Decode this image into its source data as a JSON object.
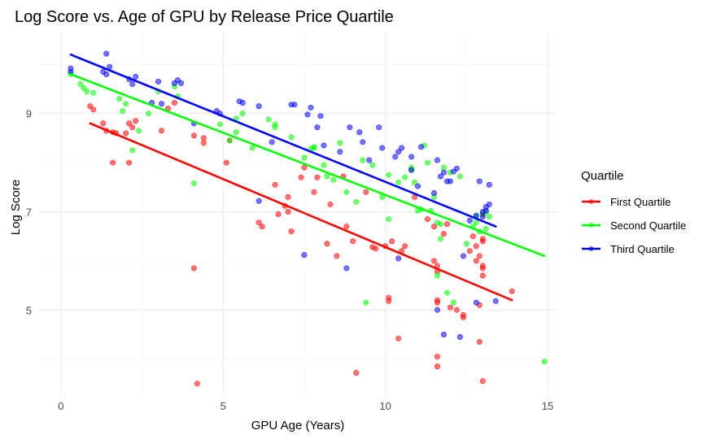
{
  "chart_data": {
    "type": "scatter",
    "title": "Log Score vs. Age of GPU by Release Price Quartile",
    "xlabel": "GPU Age (Years)",
    "ylabel": "Log Score",
    "xlim": [
      -0.7,
      15.3
    ],
    "ylim": [
      3.25,
      10.65
    ],
    "x_ticks": [
      0,
      5,
      10,
      15
    ],
    "y_ticks": [
      5,
      7,
      9
    ],
    "grid": true,
    "legend": {
      "title": "Quartile",
      "position": "right"
    },
    "series": [
      {
        "name": "First Quartile",
        "color": "#ff0000",
        "trend": {
          "x": [
            0.9,
            13.9
          ],
          "y": [
            8.8,
            5.2
          ]
        },
        "points": [
          [
            0.9,
            9.15
          ],
          [
            1,
            9.08
          ],
          [
            1.3,
            8.8
          ],
          [
            1.4,
            8.65
          ],
          [
            1.6,
            8.62
          ],
          [
            1.6,
            8.0
          ],
          [
            1.7,
            8.6
          ],
          [
            2,
            8.6
          ],
          [
            2.1,
            8.8
          ],
          [
            2.3,
            8.85
          ],
          [
            2.2,
            8.72
          ],
          [
            3.1,
            8.65
          ],
          [
            3.3,
            9.1
          ],
          [
            3.5,
            9.22
          ],
          [
            2.1,
            8.0
          ],
          [
            4.1,
            8.55
          ],
          [
            4.4,
            8.5
          ],
          [
            4.4,
            8.4
          ],
          [
            4.1,
            5.85
          ],
          [
            4.2,
            3.5
          ],
          [
            5.1,
            8.0
          ],
          [
            5.2,
            8.45
          ],
          [
            6.1,
            6.78
          ],
          [
            6.2,
            6.7
          ],
          [
            6.6,
            7.55
          ],
          [
            6.7,
            6.95
          ],
          [
            6.9,
            7.12
          ],
          [
            7,
            7.0
          ],
          [
            7,
            7.3
          ],
          [
            7.1,
            6.6
          ],
          [
            7.4,
            7.7
          ],
          [
            7.5,
            7.9
          ],
          [
            7.8,
            7.4
          ],
          [
            7.9,
            7.7
          ],
          [
            8.2,
            6.35
          ],
          [
            8.3,
            7.15
          ],
          [
            8.5,
            6.1
          ],
          [
            8.7,
            7.72
          ],
          [
            8.8,
            6.7
          ],
          [
            9,
            6.4
          ],
          [
            9.4,
            7.4
          ],
          [
            9.6,
            6.28
          ],
          [
            9.7,
            6.25
          ],
          [
            10,
            6.3
          ],
          [
            10.1,
            5.25
          ],
          [
            10.1,
            5.18
          ],
          [
            10.2,
            6.4
          ],
          [
            10.5,
            6.2
          ],
          [
            10.6,
            6.3
          ],
          [
            10.9,
            7.3
          ],
          [
            11.3,
            6.85
          ],
          [
            11.5,
            6.7
          ],
          [
            11.5,
            6.0
          ],
          [
            11.6,
            5.9
          ],
          [
            11.6,
            5.78
          ],
          [
            11.6,
            5.2
          ],
          [
            11.6,
            5.15
          ],
          [
            11.6,
            4.05
          ],
          [
            11.6,
            3.85
          ],
          [
            11.8,
            6.55
          ],
          [
            11.9,
            6.75
          ],
          [
            12,
            5.05
          ],
          [
            12.2,
            5.0
          ],
          [
            12.4,
            4.85
          ],
          [
            12.4,
            4.9
          ],
          [
            12.6,
            6.2
          ],
          [
            12.7,
            6.5
          ],
          [
            12.8,
            6.3
          ],
          [
            12.8,
            6.0
          ],
          [
            12.9,
            6.1
          ],
          [
            12.9,
            4.35
          ],
          [
            12.9,
            5.1
          ],
          [
            13,
            6.95
          ],
          [
            13,
            6.45
          ],
          [
            13,
            6.4
          ],
          [
            13,
            5.85
          ],
          [
            13,
            5.7
          ],
          [
            13,
            5.9
          ],
          [
            13,
            3.55
          ],
          [
            13.9,
            5.38
          ],
          [
            9.1,
            3.72
          ],
          [
            10.4,
            4.42
          ]
        ]
      },
      {
        "name": "Second Quartile",
        "color": "#00ff00",
        "trend": {
          "x": [
            0.3,
            14.9
          ],
          "y": [
            9.8,
            6.1
          ]
        },
        "points": [
          [
            0.3,
            9.8
          ],
          [
            0.6,
            9.6
          ],
          [
            0.7,
            9.52
          ],
          [
            0.8,
            9.45
          ],
          [
            1,
            9.42
          ],
          [
            1.8,
            9.3
          ],
          [
            1.9,
            9.05
          ],
          [
            2,
            9.2
          ],
          [
            2.2,
            8.25
          ],
          [
            2.4,
            8.65
          ],
          [
            2.7,
            9.0
          ],
          [
            3,
            9.45
          ],
          [
            3.5,
            9.55
          ],
          [
            3.6,
            9.35
          ],
          [
            4.1,
            7.58
          ],
          [
            4.9,
            8.78
          ],
          [
            5.2,
            8.45
          ],
          [
            5.4,
            8.62
          ],
          [
            5.4,
            8.9
          ],
          [
            5.6,
            9.0
          ],
          [
            5.9,
            8.3
          ],
          [
            6.4,
            8.88
          ],
          [
            6.6,
            8.72
          ],
          [
            6.6,
            8.78
          ],
          [
            7.1,
            8.52
          ],
          [
            7.5,
            8.1
          ],
          [
            7.7,
            8.28
          ],
          [
            7.8,
            8.3
          ],
          [
            7.8,
            8.32
          ],
          [
            8.1,
            7.95
          ],
          [
            8.2,
            7.72
          ],
          [
            8.4,
            7.65
          ],
          [
            8.6,
            8.4
          ],
          [
            8.8,
            7.4
          ],
          [
            9.1,
            7.2
          ],
          [
            9.3,
            8.05
          ],
          [
            9.6,
            7.95
          ],
          [
            9.9,
            7.3
          ],
          [
            10.1,
            7.75
          ],
          [
            10.1,
            6.85
          ],
          [
            10.4,
            7.6
          ],
          [
            10.6,
            7.7
          ],
          [
            10.8,
            7.85
          ],
          [
            10.8,
            7.9
          ],
          [
            10.9,
            7.6
          ],
          [
            11,
            7.02
          ],
          [
            11.1,
            7.05
          ],
          [
            11.2,
            8.35
          ],
          [
            11.3,
            8.0
          ],
          [
            11.4,
            7.02
          ],
          [
            11.5,
            7.3
          ],
          [
            11.6,
            6.78
          ],
          [
            11.7,
            6.75
          ],
          [
            11.7,
            6.45
          ],
          [
            11.8,
            7.9
          ],
          [
            11.9,
            5.35
          ],
          [
            12,
            7.8
          ],
          [
            12.3,
            7.72
          ],
          [
            12.5,
            6.35
          ],
          [
            12.7,
            6.7
          ],
          [
            12.8,
            6.78
          ],
          [
            12.8,
            6.92
          ],
          [
            12.9,
            6.6
          ],
          [
            13,
            6.95
          ],
          [
            13.1,
            7.0
          ],
          [
            13.1,
            6.65
          ],
          [
            13.2,
            6.9
          ],
          [
            9.4,
            5.15
          ],
          [
            11.6,
            5.7
          ],
          [
            12.1,
            5.15
          ],
          [
            14.9,
            3.95
          ]
        ]
      },
      {
        "name": "Third Quartile",
        "color": "#0000ff",
        "trend": {
          "x": [
            0.3,
            13.4
          ],
          "y": [
            10.2,
            6.7
          ]
        },
        "points": [
          [
            0.3,
            9.92
          ],
          [
            0.3,
            9.85
          ],
          [
            1.3,
            9.85
          ],
          [
            1.4,
            10.22
          ],
          [
            1.4,
            9.8
          ],
          [
            1.5,
            9.95
          ],
          [
            2.1,
            9.7
          ],
          [
            2.2,
            9.6
          ],
          [
            2.3,
            9.75
          ],
          [
            2.8,
            9.22
          ],
          [
            3,
            9.65
          ],
          [
            3.1,
            9.2
          ],
          [
            3.5,
            9.62
          ],
          [
            3.6,
            9.68
          ],
          [
            3.7,
            9.62
          ],
          [
            4.1,
            8.8
          ],
          [
            4.8,
            9.05
          ],
          [
            4.9,
            9.0
          ],
          [
            5.5,
            9.25
          ],
          [
            5.6,
            9.22
          ],
          [
            6.1,
            9.15
          ],
          [
            6.1,
            7.22
          ],
          [
            6.5,
            8.42
          ],
          [
            7.1,
            9.18
          ],
          [
            7.2,
            9.18
          ],
          [
            7.6,
            8.98
          ],
          [
            7.7,
            9.12
          ],
          [
            7.9,
            8.72
          ],
          [
            8,
            8.95
          ],
          [
            8.1,
            8.35
          ],
          [
            8.6,
            8.22
          ],
          [
            8.9,
            8.72
          ],
          [
            9.2,
            8.62
          ],
          [
            9.3,
            8.42
          ],
          [
            9.5,
            8.05
          ],
          [
            9.8,
            8.72
          ],
          [
            9.9,
            8.3
          ],
          [
            10.3,
            8.12
          ],
          [
            10.4,
            8.22
          ],
          [
            10.5,
            8.3
          ],
          [
            10.8,
            8.12
          ],
          [
            10.8,
            7.85
          ],
          [
            11,
            7.52
          ],
          [
            11.1,
            8.32
          ],
          [
            11.5,
            7.38
          ],
          [
            11.6,
            8.05
          ],
          [
            11.7,
            7.72
          ],
          [
            11.8,
            7.8
          ],
          [
            11.9,
            7.62
          ],
          [
            12,
            7.62
          ],
          [
            12.1,
            7.82
          ],
          [
            12.2,
            7.88
          ],
          [
            12.4,
            6.1
          ],
          [
            12.6,
            6.82
          ],
          [
            12.8,
            6.92
          ],
          [
            12.9,
            7.62
          ],
          [
            13,
            7.0
          ],
          [
            13,
            6.9
          ],
          [
            13.1,
            7.02
          ],
          [
            13.1,
            7.1
          ],
          [
            13.2,
            7.15
          ],
          [
            13.2,
            7.55
          ],
          [
            7.5,
            6.12
          ],
          [
            8.8,
            5.85
          ],
          [
            10.4,
            6.05
          ],
          [
            11.6,
            5.0
          ],
          [
            11.8,
            4.5
          ],
          [
            12.3,
            4.45
          ],
          [
            13.4,
            5.18
          ],
          [
            12.8,
            5.15
          ]
        ]
      }
    ]
  }
}
